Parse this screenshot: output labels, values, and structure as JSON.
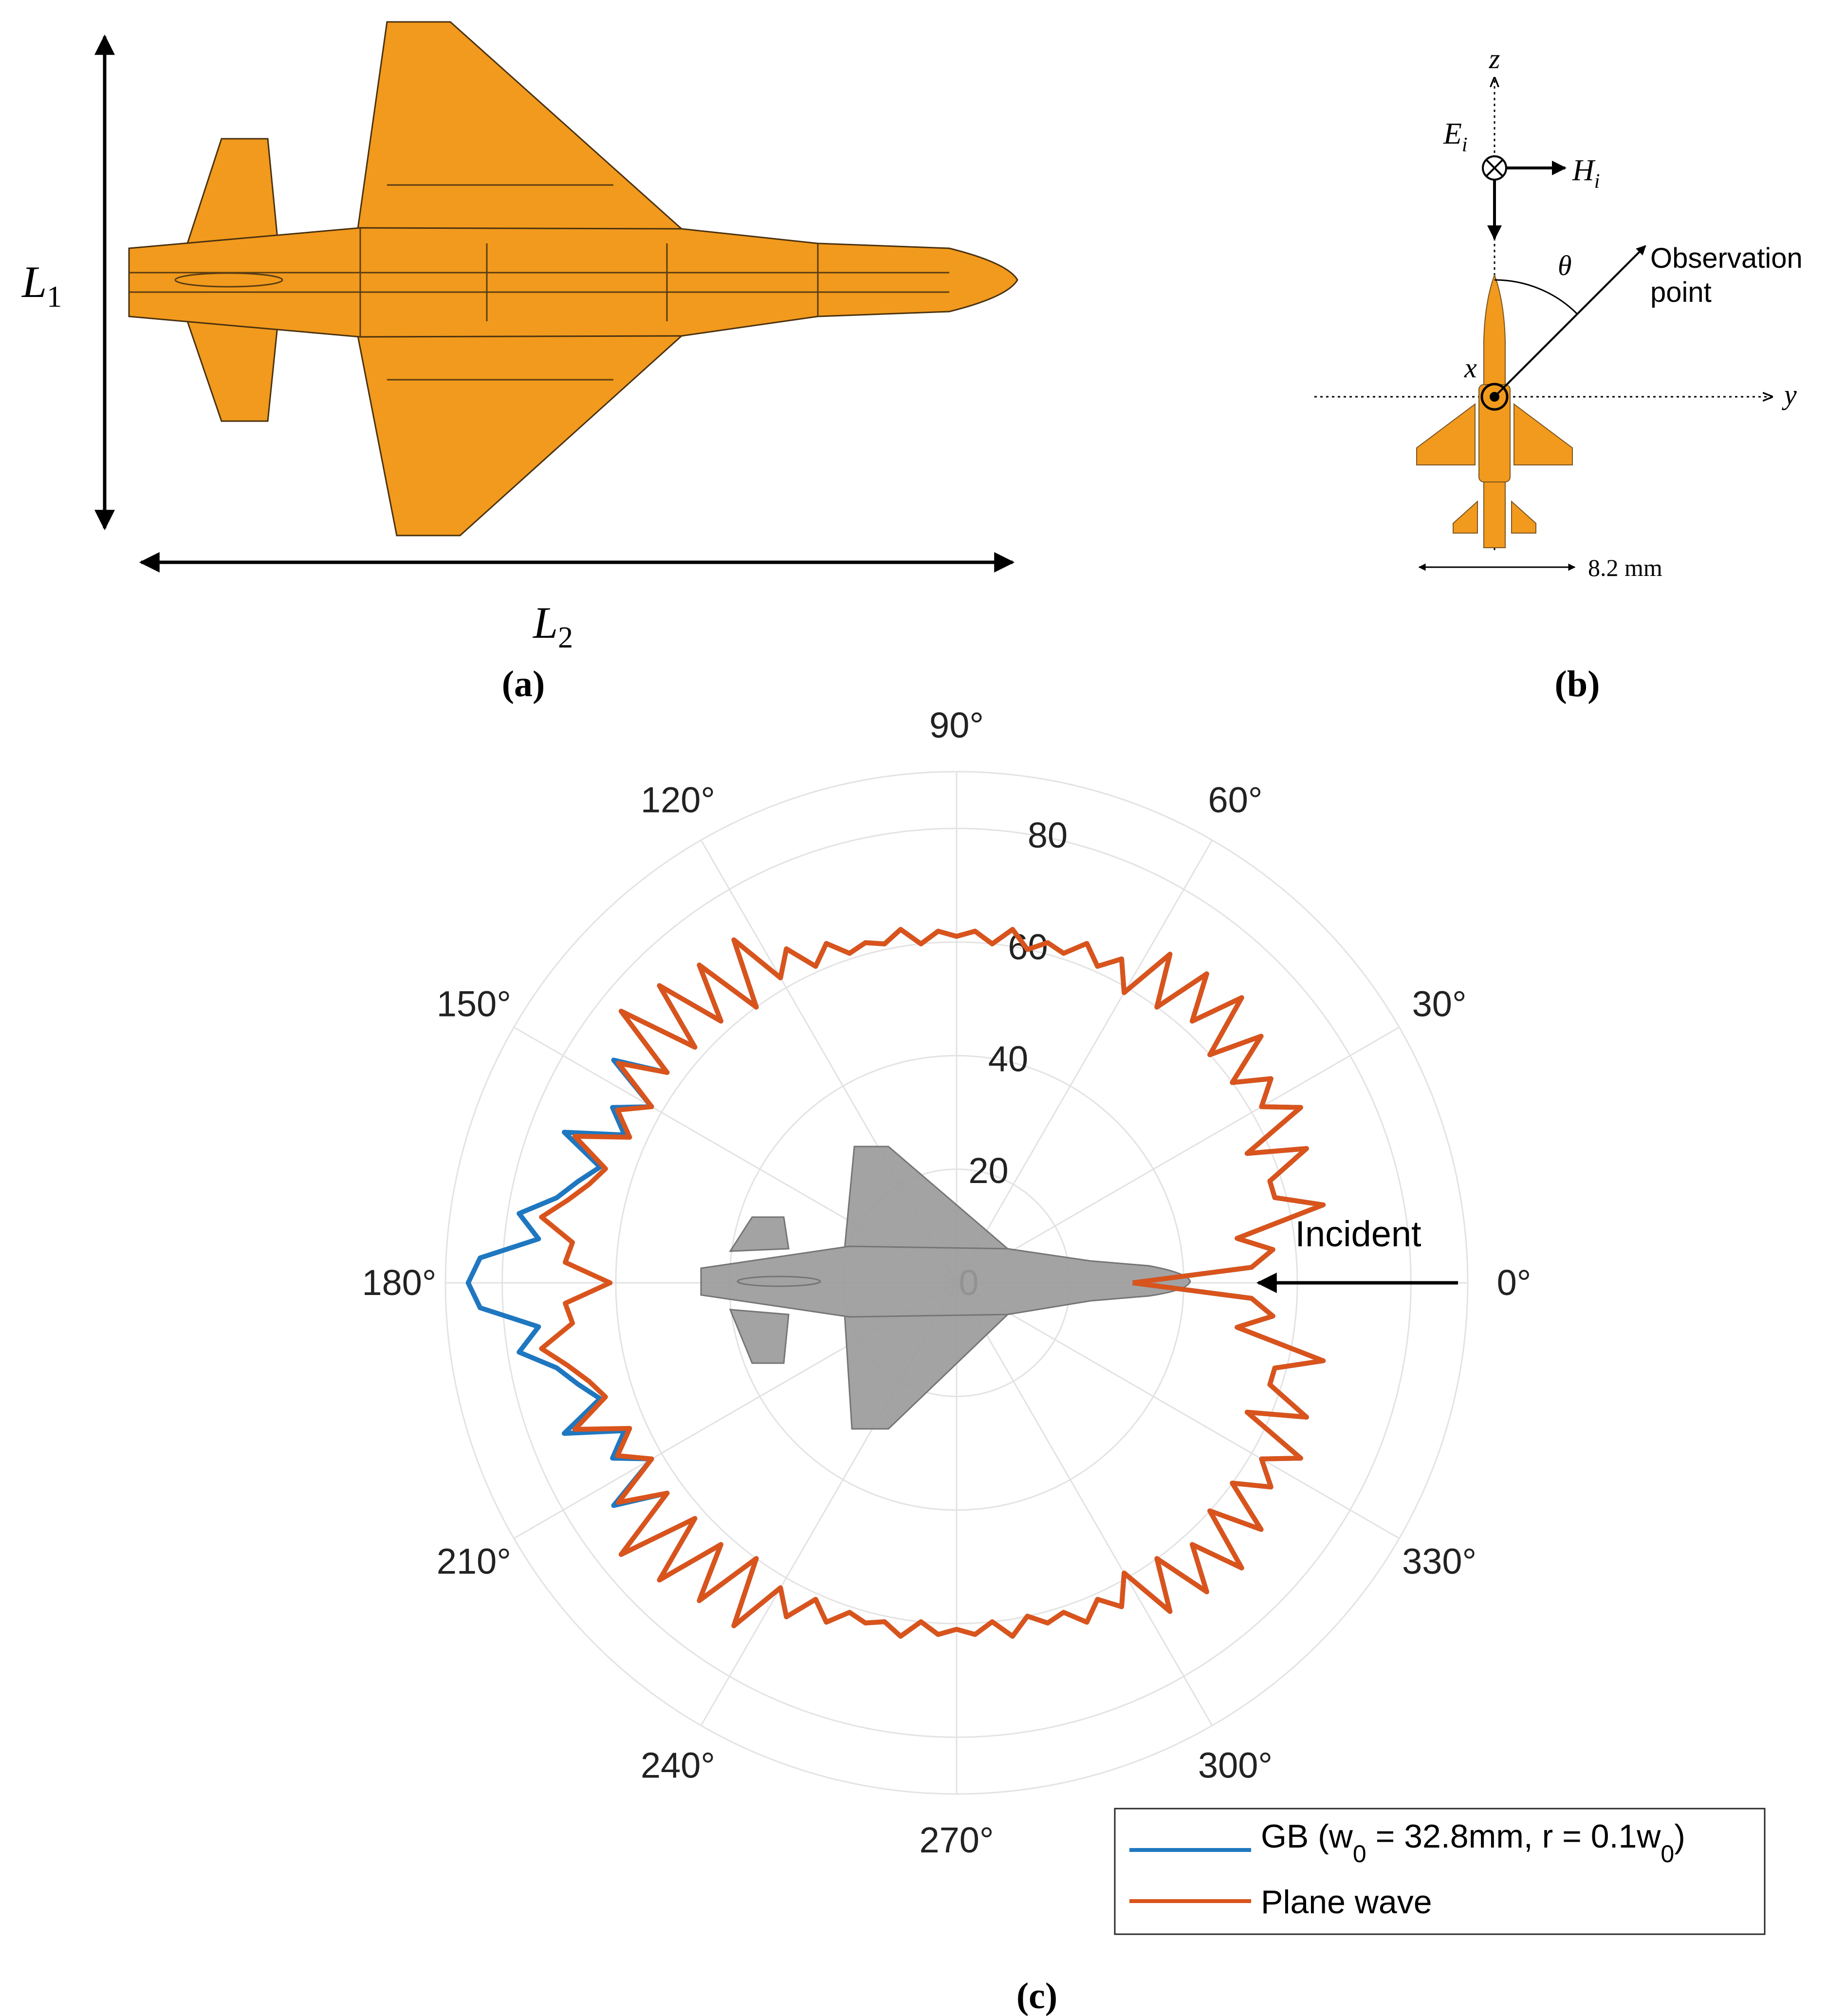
{
  "panel_a": {
    "caption": "(a)",
    "label_L1": "L",
    "label_L1_sub": "1",
    "label_L2": "L",
    "label_L2_sub": "2"
  },
  "panel_b": {
    "caption": "(b)",
    "axis_z": "z",
    "axis_y": "y",
    "axis_x": "x",
    "field_E": "E",
    "field_E_sub": "i",
    "field_H": "H",
    "field_H_sub": "i",
    "angle_symbol": "θ",
    "observation_line1": "Observation",
    "observation_line2": "point",
    "dimension_label": "8.2 mm"
  },
  "panel_c": {
    "caption": "(c)",
    "incident_label": "Incident",
    "angle_labels": [
      "0°",
      "30°",
      "60°",
      "90°",
      "120°",
      "150°",
      "180°",
      "210°",
      "240°",
      "270°",
      "300°",
      "330°"
    ],
    "radial_tick_labels": [
      "0",
      "20",
      "40",
      "60",
      "80"
    ],
    "legend": {
      "gb_label": "GB (w",
      "gb_sub1": "0",
      "gb_mid": " = 32.8mm, r = 0.1w",
      "gb_sub2": "0",
      "gb_end": ")",
      "pw_label": "Plane wave"
    }
  },
  "colors": {
    "airframe": "#f29a1d",
    "airframe_gray": "#9c9c9c",
    "gb_series": "#1f77c0",
    "plane_wave_series": "#d9541c",
    "grid": "#e3e3e3"
  },
  "chart_data": {
    "type": "polar-line",
    "theta_unit": "degrees",
    "radial_range": [
      0,
      90
    ],
    "radial_ticks": [
      0,
      20,
      40,
      60,
      80
    ],
    "angular_ticks": [
      0,
      30,
      60,
      90,
      120,
      150,
      180,
      210,
      240,
      270,
      300,
      330
    ],
    "symmetric_about_0_180_axis": true,
    "series": [
      {
        "name": "GB (w0 = 32.8mm, r = 0.1w0)",
        "theta": [
          0,
          3,
          6,
          9,
          12,
          15,
          18,
          21,
          24,
          27,
          30,
          33,
          36,
          39,
          42,
          45,
          48,
          51,
          54,
          57,
          60,
          63,
          66,
          69,
          72,
          75,
          78,
          81,
          84,
          87,
          90,
          93,
          96,
          99,
          102,
          105,
          108,
          111,
          114,
          117,
          120,
          123,
          126,
          129,
          132,
          135,
          138,
          141,
          144,
          147,
          150,
          153,
          156,
          159,
          162,
          165,
          168,
          171,
          174,
          177,
          180
        ],
        "r": [
          31,
          52,
          56,
          50,
          66,
          58,
          58,
          66,
          56,
          68,
          62,
          66,
          60,
          69,
          60,
          71,
          62,
          70,
          60,
          69,
          59,
          64,
          61,
          64,
          61,
          62,
          60,
          63,
          60,
          62,
          61,
          62,
          60,
          63,
          61,
          62,
          61,
          64,
          61,
          66,
          62,
          72,
          60,
          72,
          62,
          74,
          62,
          76,
          63,
          72,
          62,
          68,
          64,
          74,
          66,
          69,
          72,
          78,
          74,
          84,
          86
        ]
      },
      {
        "name": "Plane wave",
        "theta": [
          0,
          3,
          6,
          9,
          12,
          15,
          18,
          21,
          24,
          27,
          30,
          33,
          36,
          39,
          42,
          45,
          48,
          51,
          54,
          57,
          60,
          63,
          66,
          69,
          72,
          75,
          78,
          81,
          84,
          87,
          90,
          93,
          96,
          99,
          102,
          105,
          108,
          111,
          114,
          117,
          120,
          123,
          126,
          129,
          132,
          135,
          138,
          141,
          144,
          147,
          150,
          153,
          156,
          159,
          162,
          165,
          168,
          171,
          174,
          177,
          180
        ],
        "r": [
          31,
          52,
          56,
          50,
          66,
          58,
          58,
          66,
          56,
          68,
          62,
          66,
          60,
          69,
          60,
          71,
          62,
          70,
          60,
          69,
          59,
          64,
          61,
          64,
          61,
          62,
          60,
          63,
          60,
          62,
          61,
          62,
          60,
          63,
          61,
          62,
          61,
          64,
          61,
          66,
          62,
          72,
          60,
          72,
          62,
          74,
          62,
          76,
          63,
          71,
          62,
          67,
          63,
          72,
          65,
          67,
          70,
          74,
          68,
          69,
          61
        ]
      }
    ]
  }
}
